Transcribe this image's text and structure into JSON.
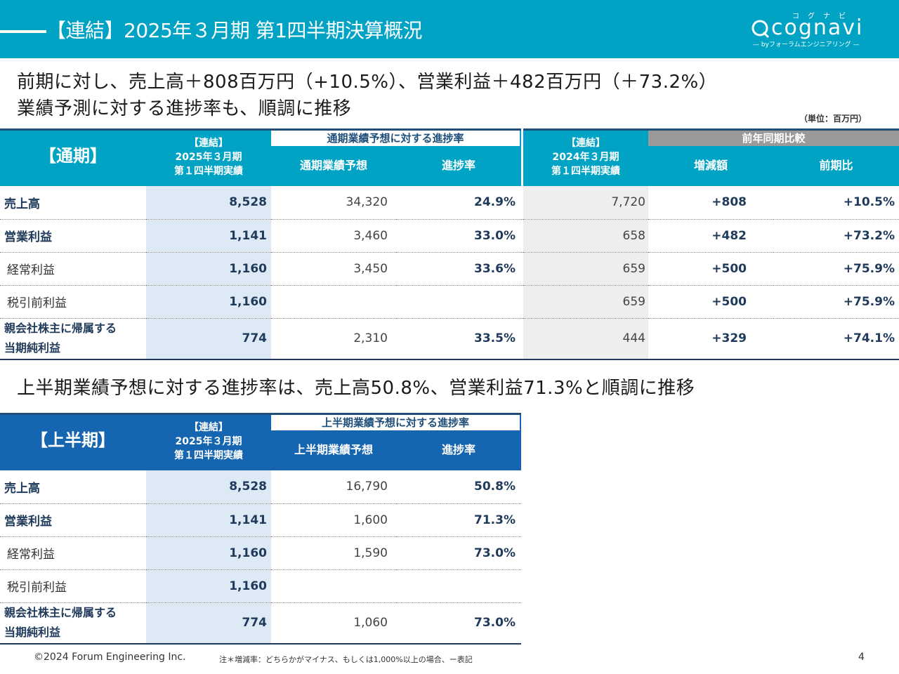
{
  "header": {
    "title": "【連結】2025年３月期 第1四半期決算概況",
    "logo": {
      "kana": "コグナビ",
      "wordmark": "cognavi",
      "sub": "— byフォーラムエンジニアリング —"
    },
    "bg_color": "#00a3c4"
  },
  "headline1": "前期に対し、売上高＋808百万円（+10.5%）、営業利益＋482百万円（＋73.2%）",
  "headline2": "業績予測に対する進捗率も、順調に推移",
  "unit_label": "（単位：百万円）",
  "table1": {
    "title": "【通期】",
    "col_actual": [
      "【連結】",
      "2025年３月期",
      "第１四半期実績"
    ],
    "group_forecast": "通期業績予想に対する進捗率",
    "col_forecast": "通期業績予想",
    "col_rate": "進捗率",
    "col_prev": [
      "【連結】",
      "2024年３月期",
      "第１四半期実績"
    ],
    "group_compare": "前年同期比較",
    "col_diff": "増減額",
    "col_ratio": "前期比",
    "rows": [
      {
        "label": "売上高",
        "actual": "8,528",
        "forecast": "34,320",
        "rate": "24.9%",
        "prev": "7,720",
        "diff": "+808",
        "ratio": "+10.5%"
      },
      {
        "label": "営業利益",
        "actual": "1,141",
        "forecast": "3,460",
        "rate": "33.0%",
        "prev": "658",
        "diff": "+482",
        "ratio": "+73.2%"
      },
      {
        "label": "経常利益",
        "actual": "1,160",
        "forecast": "3,450",
        "rate": "33.6%",
        "prev": "659",
        "diff": "+500",
        "ratio": "+75.9%"
      },
      {
        "label": "税引前利益",
        "actual": "1,160",
        "forecast": "",
        "rate": "",
        "prev": "659",
        "diff": "+500",
        "ratio": "+75.9%"
      },
      {
        "label": "親会社株主に帰属する当期純利益",
        "label_line1": "親会社株主に帰属する",
        "label_line2": "当期純利益",
        "actual": "774",
        "forecast": "2,310",
        "rate": "33.5%",
        "prev": "444",
        "diff": "+329",
        "ratio": "+74.1%"
      }
    ]
  },
  "headline3": "上半期業績予想に対する進捗率は、売上高50.8%、営業利益71.3%と順調に推移",
  "table2": {
    "title": "【上半期】",
    "col_actual": [
      "【連結】",
      "2025年３月期",
      "第１四半期実績"
    ],
    "group_forecast": "上半期業績予想に対する進捗率",
    "col_forecast": "上半期業績予想",
    "col_rate": "進捗率",
    "rows": [
      {
        "label": "売上高",
        "actual": "8,528",
        "forecast": "16,790",
        "rate": "50.8%"
      },
      {
        "label": "営業利益",
        "actual": "1,141",
        "forecast": "1,600",
        "rate": "71.3%"
      },
      {
        "label": "経常利益",
        "actual": "1,160",
        "forecast": "1,590",
        "rate": "73.0%"
      },
      {
        "label": "税引前利益",
        "actual": "1,160",
        "forecast": "",
        "rate": ""
      },
      {
        "label": "親会社株主に帰属する当期純利益",
        "label_line1": "親会社株主に帰属する",
        "label_line2": "当期純利益",
        "actual": "774",
        "forecast": "1,060",
        "rate": "73.0%"
      }
    ]
  },
  "footer": {
    "copyright": "©2024 Forum Engineering Inc.",
    "note": "注＊増減率：どちらかがマイナス、もしくは1,000%以上の場合、ー表記",
    "page": "4"
  },
  "colors": {
    "teal": "#00a3c4",
    "navy_header": "#1565b0",
    "actual_bg": "#dde9f5",
    "prev_bg": "#eeeeee"
  }
}
